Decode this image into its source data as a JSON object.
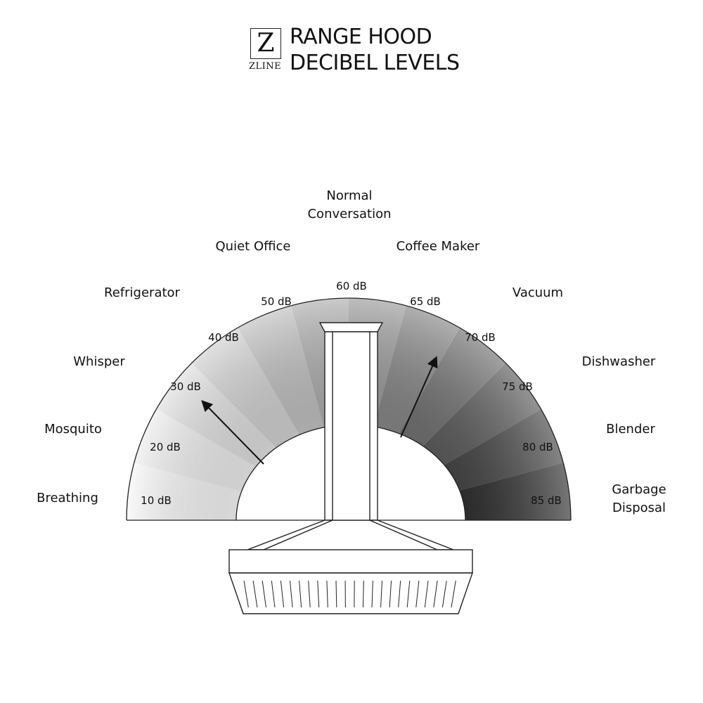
{
  "logo": {
    "letter": "Z",
    "word": "ZLINE"
  },
  "title": {
    "line1": "RANGE HOOD",
    "line2": "DECIBEL LEVELS"
  },
  "levels": [
    {
      "db": "10 dB",
      "label": "Breathing"
    },
    {
      "db": "20 dB",
      "label": "Mosquito"
    },
    {
      "db": "30 dB",
      "label": "Whisper"
    },
    {
      "db": "40 dB",
      "label": "Refrigerator"
    },
    {
      "db": "50 dB",
      "label": "Quiet Office"
    },
    {
      "db": "60 dB",
      "label": "Normal Conversation",
      "line1": "Normal",
      "line2": "Conversation"
    },
    {
      "db": "65 dB",
      "label": "Coffee Maker"
    },
    {
      "db": "70 dB",
      "label": "Vacuum"
    },
    {
      "db": "75 dB",
      "label": "Dishwasher"
    },
    {
      "db": "80 dB",
      "label": "Blender"
    },
    {
      "db": "85 dB",
      "label": "Garbage Disposal",
      "line1": "Garbage",
      "line2": "Disposal"
    }
  ],
  "colors": {
    "light": "#f7f7f7",
    "dark": "#2e2e2e",
    "line": "#222222"
  }
}
